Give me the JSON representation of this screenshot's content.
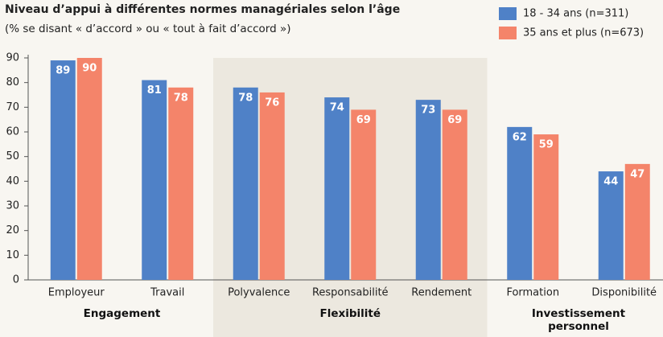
{
  "chart_data": {
    "type": "bar",
    "title": "Niveau d’appui à différentes normes managériales selon l’âge",
    "subtitle": "(% se disant « d’accord » ou « tout à fait d’accord »)",
    "categories": [
      "Employeur",
      "Travail",
      "Polyvalence",
      "Responsabilité",
      "Rendement",
      "Formation",
      "Disponibilité"
    ],
    "groups": [
      {
        "name": "Engagement",
        "members": [
          "Employeur",
          "Travail"
        ],
        "highlight": false
      },
      {
        "name": "Flexibilité",
        "members": [
          "Polyvalence",
          "Responsabilité",
          "Rendement"
        ],
        "highlight": true
      },
      {
        "name": "Investissement personnel",
        "members": [
          "Formation",
          "Disponibilité"
        ],
        "highlight": false
      }
    ],
    "series": [
      {
        "name": "18 - 34 ans (n=311)",
        "color": "#4f81c7",
        "values": [
          89,
          81,
          78,
          74,
          73,
          62,
          44
        ]
      },
      {
        "name": "35 ans et plus (n=673)",
        "color": "#f4846a",
        "values": [
          90,
          78,
          76,
          69,
          69,
          59,
          47
        ]
      }
    ],
    "ylim": [
      0,
      90
    ],
    "yticks": [
      0,
      10,
      20,
      30,
      40,
      50,
      60,
      70,
      80,
      90
    ],
    "legend": "top-right"
  }
}
